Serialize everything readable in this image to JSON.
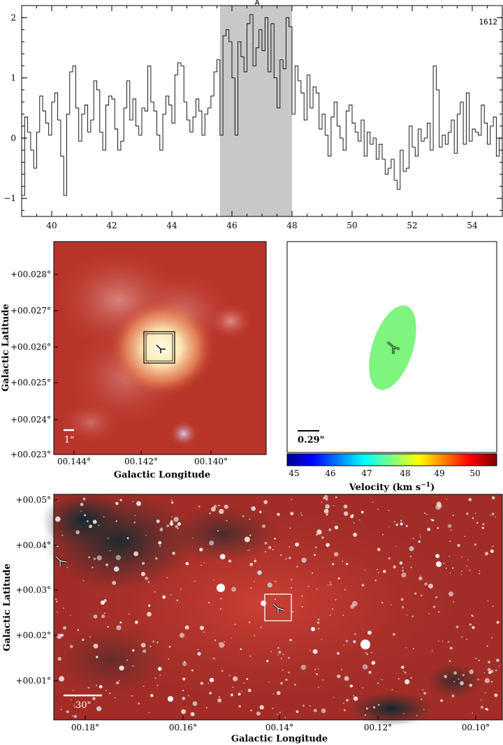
{
  "spectrum": {
    "label_A": "A",
    "label_id": "1612",
    "highlight_color": "#c8c8c8",
    "xticks": [
      "40",
      "42",
      "44",
      "46",
      "48",
      "50",
      "52",
      "54"
    ],
    "yticks": [
      "2",
      "1",
      "0",
      "−1"
    ]
  },
  "chart_data": [
    {
      "type": "line",
      "step": true,
      "xlim": [
        39,
        55
      ],
      "ylim": [
        -1.3,
        2.2
      ],
      "highlight_range": [
        45.6,
        48.0
      ],
      "x": [
        39.0,
        39.1,
        39.2,
        39.3,
        39.4,
        39.5,
        39.6,
        39.7,
        39.8,
        39.9,
        40.0,
        40.1,
        40.2,
        40.3,
        40.4,
        40.5,
        40.6,
        40.7,
        40.8,
        40.9,
        41.0,
        41.1,
        41.2,
        41.3,
        41.4,
        41.5,
        41.6,
        41.7,
        41.8,
        41.9,
        42.0,
        42.1,
        42.2,
        42.3,
        42.4,
        42.5,
        42.6,
        42.7,
        42.8,
        42.9,
        43.0,
        43.1,
        43.2,
        43.3,
        43.4,
        43.5,
        43.6,
        43.7,
        43.8,
        43.9,
        44.0,
        44.1,
        44.2,
        44.3,
        44.4,
        44.5,
        44.6,
        44.7,
        44.8,
        44.9,
        45.0,
        45.1,
        45.2,
        45.3,
        45.4,
        45.5,
        45.6,
        45.7,
        45.8,
        45.9,
        46.0,
        46.1,
        46.2,
        46.3,
        46.4,
        46.5,
        46.6,
        46.7,
        46.8,
        46.9,
        47.0,
        47.1,
        47.2,
        47.3,
        47.4,
        47.5,
        47.6,
        47.7,
        47.8,
        47.9,
        48.0,
        48.1,
        48.2,
        48.3,
        48.4,
        48.5,
        48.6,
        48.7,
        48.8,
        48.9,
        49.0,
        49.1,
        49.2,
        49.3,
        49.4,
        49.5,
        49.6,
        49.7,
        49.8,
        49.9,
        50.0,
        50.1,
        50.2,
        50.3,
        50.4,
        50.5,
        50.6,
        50.7,
        50.8,
        50.9,
        51.0,
        51.1,
        51.2,
        51.3,
        51.4,
        51.5,
        51.6,
        51.7,
        51.8,
        51.9,
        52.0,
        52.1,
        52.2,
        52.3,
        52.4,
        52.5,
        52.6,
        52.7,
        52.8,
        52.9,
        53.0,
        53.1,
        53.2,
        53.3,
        53.4,
        53.5,
        53.6,
        53.7,
        53.8,
        53.9,
        54.0,
        54.1,
        54.2,
        54.3,
        54.4,
        54.5,
        54.6,
        54.7,
        54.8,
        54.9
      ],
      "y": [
        -0.95,
        0.35,
        0.1,
        -0.2,
        -0.5,
        0.1,
        0.7,
        0.45,
        0.25,
        0.05,
        0.6,
        0.75,
        0.3,
        -0.3,
        -0.95,
        0.4,
        1.1,
        1.2,
        0.5,
        -0.05,
        0.4,
        0.55,
        0.1,
        0.3,
        0.95,
        0.8,
        0.1,
        -0.2,
        0.55,
        0.7,
        0.65,
        0.15,
        -0.2,
        -0.05,
        0.5,
        0.95,
        0.3,
        0.65,
        0.2,
        0.05,
        0.5,
        0.45,
        1.2,
        0.6,
        0.45,
        0.05,
        -0.2,
        0.4,
        0.7,
        0.55,
        0.25,
        1.05,
        1.25,
        1.2,
        0.6,
        0.3,
        0.1,
        0.35,
        0.65,
        0.45,
        0.05,
        0.4,
        0.5,
        0.7,
        1.1,
        1.3,
        0.05,
        1.7,
        1.8,
        1.6,
        1.0,
        0.05,
        1.6,
        1.35,
        1.1,
        1.9,
        2.05,
        1.2,
        1.5,
        1.8,
        1.45,
        2.0,
        1.1,
        1.9,
        1.0,
        0.5,
        1.3,
        1.15,
        2.0,
        1.85,
        0.4,
        1.2,
        0.95,
        0.75,
        0.3,
        1.05,
        0.5,
        0.85,
        0.75,
        0.15,
        0.4,
        0.05,
        -0.3,
        0.35,
        0.6,
        0.2,
        0.0,
        -0.2,
        0.45,
        0.55,
        0.25,
        0.1,
        -0.05,
        0.3,
        -0.3,
        0.1,
        -0.1,
        0.0,
        -0.35,
        -0.1,
        -0.35,
        -0.6,
        -0.5,
        -0.35,
        -0.7,
        -0.85,
        -0.2,
        -0.55,
        -0.5,
        0.2,
        -0.15,
        -0.3,
        0.15,
        -0.05,
        0.0,
        0.25,
        -0.2,
        1.2,
        0.8,
        -0.15,
        0.05,
        -0.1,
        0.1,
        0.3,
        -0.25,
        0.4,
        0.6,
        -0.1,
        0.75,
        -0.05,
        0.15,
        0.1,
        0.05,
        0.55,
        0.25,
        -0.1,
        0.2,
        0.35,
        -0.3,
        0.0
      ]
    }
  ],
  "panel_left": {
    "yaxis_title": "Galactic Latitude",
    "xaxis_title": "Galactic Longitude",
    "yticks": [
      "+00.028°",
      "+00.027°",
      "+00.026°",
      "+00.025°",
      "+00.024°",
      "+00.023°"
    ],
    "xticks": [
      "00.144°",
      "00.142°",
      "00.140°"
    ],
    "scale_label": "1\""
  },
  "panel_right": {
    "scale_label": "0.29\"",
    "ellipse_color": "#7ef57e",
    "colorbar_ticks": [
      "45",
      "46",
      "47",
      "48",
      "49",
      "50"
    ],
    "colorbar_title": "Velocity (km s",
    "colorbar_sup": "−1",
    "colorbar_close": ")"
  },
  "panel_bottom": {
    "yaxis_title": "Galactic Latitude",
    "xaxis_title": "Galactic Longitude",
    "yticks": [
      "+00.05°",
      "+00.04°",
      "+00.03°",
      "+00.02°",
      "+00.01°"
    ],
    "xticks": [
      "00.18°",
      "00.16°",
      "00.14°",
      "00.12°",
      "00.10°"
    ],
    "scale_label": "30\""
  }
}
